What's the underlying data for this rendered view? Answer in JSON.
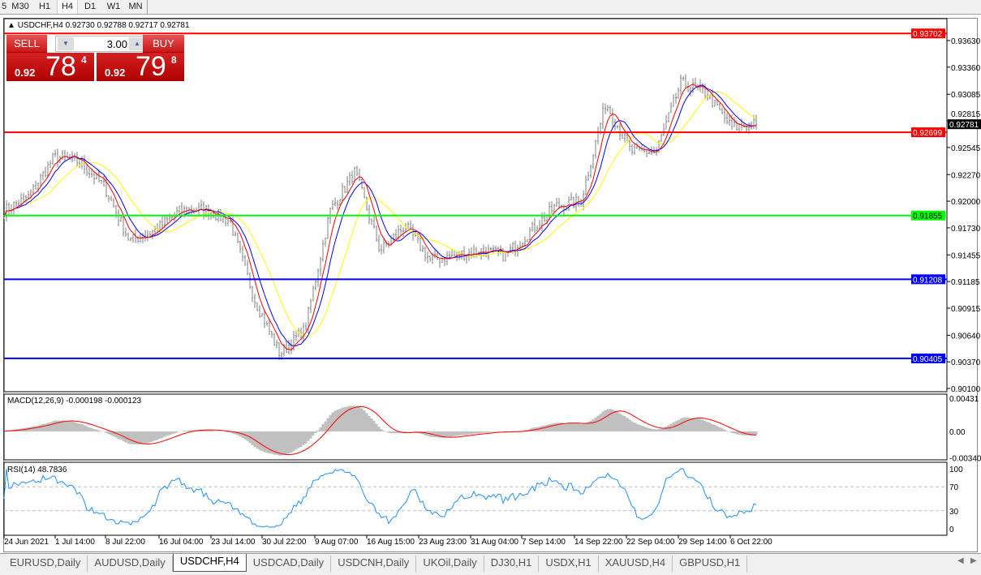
{
  "toolbar": {
    "timeframes": [
      "5",
      "M30",
      "H1",
      "H4",
      "D1",
      "W1",
      "MN"
    ],
    "selected": "H4"
  },
  "chart": {
    "symbol_line": "USDCHF,H4  0.92730 0.92788 0.92717 0.92781",
    "symbol": "USDCHF",
    "timeframe": "H4",
    "open": "0.92730",
    "high": "0.92788",
    "low": "0.92717",
    "close": "0.92781"
  },
  "trade_panel": {
    "sell_label": "SELL",
    "buy_label": "BUY",
    "lot": "3.00",
    "sell_small": "0.92",
    "sell_big": "78",
    "sell_pip": "4",
    "buy_small": "0.92",
    "buy_big": "79",
    "buy_pip": "8"
  },
  "colors": {
    "bull_bear_bars": "#808080",
    "ma_fast": "#ff0000",
    "ma_mid": "#0000ff",
    "ma_slow": "#ffff00",
    "macd_hist": "#c0c0c0",
    "macd_signal": "#ff0000",
    "rsi": "#1e90ff"
  },
  "chart_data": {
    "type": "ohlc",
    "price_axis": [
      "0.93630",
      "0.93360",
      "0.93085",
      "0.92815",
      "0.92545",
      "0.92270",
      "0.92000",
      "0.91730",
      "0.91455",
      "0.91185",
      "0.90915",
      "0.90640",
      "0.90370",
      "0.90100"
    ],
    "ylim": [
      0.901,
      0.9375
    ],
    "time_axis": [
      "24 Jun 2021",
      "1 Jul 14:00",
      "8 Jul 22:00",
      "16 Jul 04:00",
      "23 Jul 14:00",
      "30 Jul 22:00",
      "9 Aug 07:00",
      "16 Aug 15:00",
      "23 Aug 23:00",
      "31 Aug 04:00",
      "7 Sep 14:00",
      "14 Sep 22:00",
      "22 Sep 04:00",
      "29 Sep 14:00",
      "6 Oct 22:00"
    ],
    "close_path": [
      0.919,
      0.9205,
      0.9245,
      0.924,
      0.9215,
      0.916,
      0.917,
      0.919,
      0.9192,
      0.918,
      0.91,
      0.9045,
      0.907,
      0.919,
      0.923,
      0.915,
      0.9175,
      0.914,
      0.9145,
      0.915,
      0.9145,
      0.917,
      0.9195,
      0.92,
      0.93,
      0.925,
      0.925,
      0.932,
      0.931,
      0.9275,
      0.92781
    ],
    "hlines": [
      {
        "price": "0.93702",
        "color": "#ff0000"
      },
      {
        "price": "0.92699",
        "color": "#ff0000"
      },
      {
        "price": "0.91855",
        "color": "#00ff00"
      },
      {
        "price": "0.91208",
        "color": "#0000ff"
      },
      {
        "price": "0.90405",
        "color": "#0000ff"
      }
    ],
    "bid_label": "0.92781",
    "macd": {
      "title": "MACD(12,26,9) -0.000198 -0.000123",
      "axis": [
        "0.00431",
        "0.00",
        "-0.003405"
      ]
    },
    "rsi": {
      "title": "RSI(14) 48.7836",
      "axis": [
        "100",
        "70",
        "30",
        "0"
      ],
      "levels": [
        70,
        30
      ]
    }
  },
  "tabs": {
    "items": [
      "EURUSD,Daily",
      "AUDUSD,Daily",
      "USDCHF,H4",
      "USDCAD,Daily",
      "USDCNH,Daily",
      "UKOil,Daily",
      "DJ30,H1",
      "USDX,H1",
      "XAUUSD,H4",
      "GBPUSD,H1"
    ],
    "active": "USDCHF,H4"
  }
}
